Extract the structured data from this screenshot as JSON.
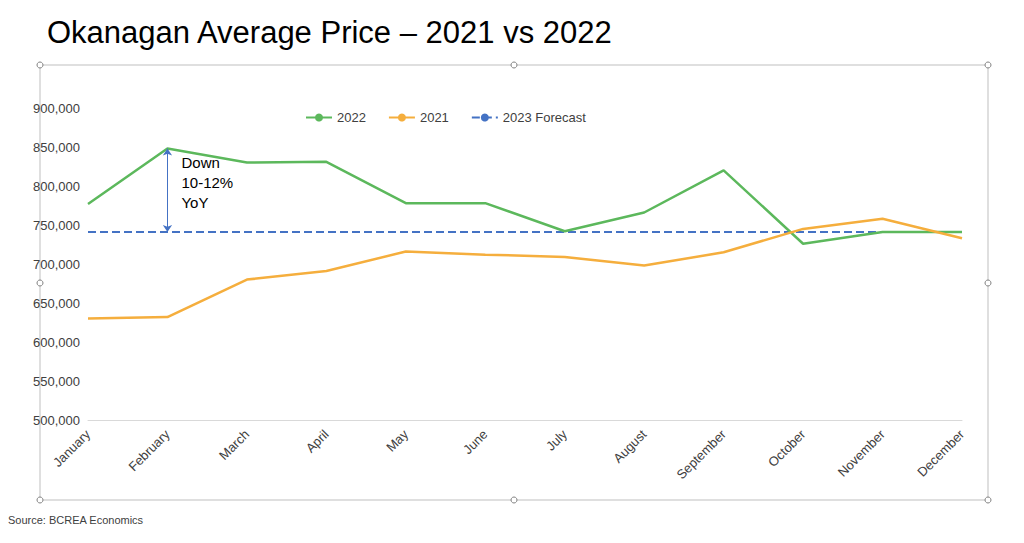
{
  "chart_data": {
    "type": "line",
    "title": "Okanagan Average Price – 2021 vs 2022",
    "source": "Source: BCREA Economics",
    "categories": [
      "January",
      "February",
      "March",
      "April",
      "May",
      "June",
      "July",
      "August",
      "September",
      "October",
      "November",
      "December"
    ],
    "series": [
      {
        "name": "2022",
        "color": "#5cb85c",
        "line_style": "solid",
        "values": [
          777000,
          848000,
          830000,
          831000,
          778000,
          778000,
          742000,
          766000,
          820000,
          726000,
          741000,
          741000
        ]
      },
      {
        "name": "2021",
        "color": "#f5ae3d",
        "line_style": "solid",
        "values": [
          630000,
          632000,
          680000,
          691000,
          716000,
          712000,
          709000,
          698000,
          715000,
          745000,
          758000,
          733000
        ]
      },
      {
        "name": "2023 Forecast",
        "color": "#4472c4",
        "line_style": "dashed",
        "values": [
          741000,
          741000,
          741000,
          741000,
          741000,
          741000,
          741000,
          741000,
          741000,
          741000,
          741000,
          741000
        ]
      }
    ],
    "ylim": [
      500000,
      900000
    ],
    "yticks": [
      {
        "value": 500000,
        "label": "500,000"
      },
      {
        "value": 550000,
        "label": "550,000"
      },
      {
        "value": 600000,
        "label": "600,000"
      },
      {
        "value": 650000,
        "label": "650,000"
      },
      {
        "value": 700000,
        "label": "700,000"
      },
      {
        "value": 750000,
        "label": "750,000"
      },
      {
        "value": 800000,
        "label": "800,000"
      },
      {
        "value": 850000,
        "label": "850,000"
      },
      {
        "value": 900000,
        "label": "900,000"
      }
    ],
    "grid": false,
    "legend": "top",
    "annotations": [
      {
        "text": "Down\n10-12%\nYoY",
        "category": "February",
        "series": [
          "2022",
          "2023 Forecast"
        ]
      }
    ]
  }
}
